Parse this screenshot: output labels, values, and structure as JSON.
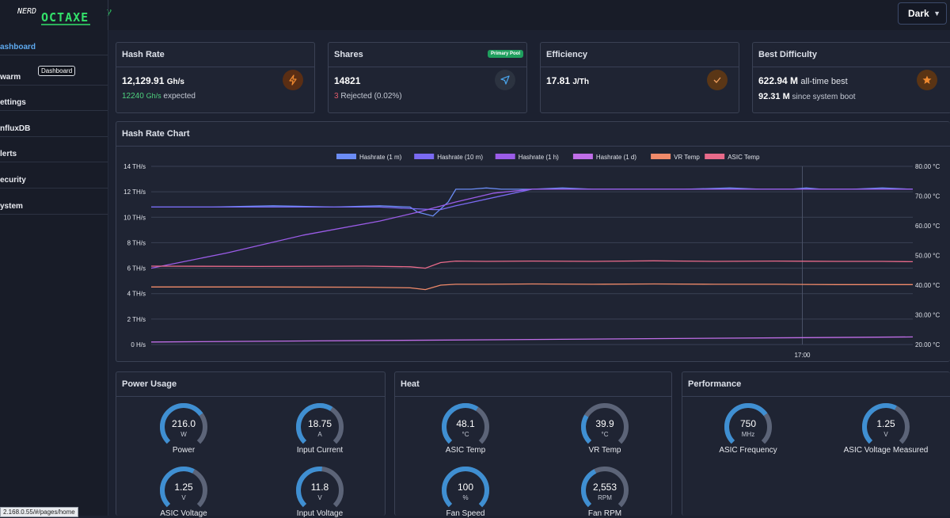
{
  "app": {
    "logo_text": "NERD OCTAXE γ"
  },
  "theme": {
    "selected": "Dark"
  },
  "sidebar": {
    "items": [
      {
        "label": "ashboard",
        "active": true
      },
      {
        "label": "warm",
        "active": false
      },
      {
        "label": "ettings",
        "active": false
      },
      {
        "label": "nfluxDB",
        "active": false
      },
      {
        "label": "lerts",
        "active": false
      },
      {
        "label": "ecurity",
        "active": false
      },
      {
        "label": "ystem",
        "active": false
      }
    ],
    "tooltip": "Dashboard"
  },
  "cards": {
    "hashrate": {
      "title": "Hash Rate",
      "value": "12,129.91",
      "unit": "Gh/s",
      "expected_value": "12240",
      "expected_unit": "Gh/s",
      "expected_text": "expected"
    },
    "shares": {
      "title": "Shares",
      "badge": "Primary Pool",
      "value": "14821",
      "rejected_count": "3",
      "rejected_text": "Rejected",
      "rejected_pct": "(0.02%)"
    },
    "efficiency": {
      "title": "Efficiency",
      "value": "17.81",
      "unit": "J/Th"
    },
    "best": {
      "title": "Best Difficulty",
      "value": "622.94 M",
      "value_suffix": "all-time best",
      "since_boot": "92.31 M",
      "since_boot_suffix": "since system boot"
    }
  },
  "colors": {
    "bg": "#1c2130",
    "card": "#1f2433",
    "accent_blue": "#5eaaf0",
    "green": "#4fd37f",
    "red": "#e05a6a",
    "icon_orange": "#e8772a",
    "gauge_fill": "#3f8fd2",
    "gauge_track": "#5c6478"
  },
  "chart_data": {
    "type": "line",
    "title": "Hash Rate Chart",
    "legend": [
      "Hashrate (1 m)",
      "Hashrate (10 m)",
      "Hashrate (1 h)",
      "Hashrate (1 d)",
      "VR Temp",
      "ASIC Temp"
    ],
    "legend_colors": [
      "#6b8cf5",
      "#7a6af2",
      "#9b5ce8",
      "#c06ee8",
      "#f08a6a",
      "#e86a8a"
    ],
    "y_left": {
      "ticks": [
        "14 TH/s",
        "12 TH/s",
        "10 TH/s",
        "8 TH/s",
        "6 TH/s",
        "4 TH/s",
        "2 TH/s",
        "0 H/s"
      ],
      "range": [
        0,
        14
      ]
    },
    "y_right": {
      "ticks": [
        "80.00 °C",
        "70.00 °C",
        "60.00 °C",
        "50.00 °C",
        "40.00 °C",
        "30.00 °C",
        "20.00 °C"
      ],
      "range": [
        20,
        80
      ]
    },
    "x_ticks": [
      "17:00"
    ],
    "x_range": [
      0,
      100
    ],
    "x_tick_positions": [
      85.5
    ],
    "series": [
      {
        "name": "Hashrate (1 m)",
        "axis": "left",
        "color": "#6b8cf5",
        "x": [
          0,
          8,
          16,
          24,
          30,
          34,
          35,
          37,
          39,
          40,
          41,
          42,
          44,
          46,
          50,
          54,
          58,
          64,
          70,
          76,
          80,
          84,
          86,
          88,
          92,
          96,
          100
        ],
        "y": [
          10.8,
          10.8,
          10.9,
          10.8,
          10.9,
          10.8,
          10.4,
          10.1,
          11.2,
          12.2,
          12.2,
          12.2,
          12.3,
          12.2,
          12.2,
          12.3,
          12.2,
          12.2,
          12.2,
          12.3,
          12.2,
          12.2,
          12.3,
          12.2,
          12.2,
          12.3,
          12.2
        ]
      },
      {
        "name": "Hashrate (10 m)",
        "axis": "left",
        "color": "#7a6af2",
        "x": [
          0,
          30,
          37,
          38,
          40,
          50,
          60,
          70,
          80,
          90,
          100
        ],
        "y": [
          10.8,
          10.8,
          10.6,
          10.6,
          10.9,
          12.2,
          12.2,
          12.2,
          12.2,
          12.2,
          12.2
        ]
      },
      {
        "name": "Hashrate (1 h)",
        "axis": "left",
        "color": "#9b5ce8",
        "x": [
          0,
          10,
          20,
          30,
          35,
          40,
          45,
          50,
          100
        ],
        "y": [
          6.0,
          7.2,
          8.6,
          9.7,
          10.4,
          11.2,
          11.9,
          12.2,
          12.2
        ]
      },
      {
        "name": "Hashrate (1 d)",
        "axis": "left",
        "color": "#c06ee8",
        "x": [
          0,
          100
        ],
        "y": [
          0.2,
          0.6
        ]
      },
      {
        "name": "ASIC Temp",
        "axis": "right",
        "color": "#e86a8a",
        "x": [
          0,
          14,
          28,
          34,
          36,
          38,
          40,
          44,
          50,
          58,
          66,
          74,
          82,
          90,
          96,
          100
        ],
        "y": [
          46.4,
          46.3,
          46.4,
          46.2,
          45.7,
          47.6,
          48.1,
          48.0,
          48.1,
          48.0,
          48.2,
          48.0,
          48.1,
          48.0,
          48.0,
          47.9
        ]
      },
      {
        "name": "VR Temp",
        "axis": "right",
        "color": "#f08a6a",
        "x": [
          0,
          14,
          28,
          34,
          36,
          38,
          40,
          44,
          50,
          58,
          66,
          74,
          82,
          90,
          96,
          100
        ],
        "y": [
          39.4,
          39.4,
          39.3,
          39.1,
          38.5,
          40.0,
          40.3,
          40.3,
          40.4,
          40.3,
          40.4,
          40.3,
          40.3,
          40.2,
          40.2,
          40.2
        ]
      }
    ]
  },
  "panels": {
    "power": {
      "title": "Power Usage",
      "gauges": [
        {
          "value": "216.0",
          "unit": "W",
          "label": "Power",
          "fraction": 0.7
        },
        {
          "value": "18.75",
          "unit": "A",
          "label": "Input Current",
          "fraction": 0.62
        },
        {
          "value": "1.25",
          "unit": "V",
          "label": "ASIC Voltage",
          "fraction": 0.6
        },
        {
          "value": "11.8",
          "unit": "V",
          "label": "Input Voltage",
          "fraction": 0.52
        }
      ]
    },
    "heat": {
      "title": "Heat",
      "gauges": [
        {
          "value": "48.1",
          "unit": "°C",
          "label": "ASIC Temp",
          "fraction": 0.62
        },
        {
          "value": "39.9",
          "unit": "°C",
          "label": "VR Temp",
          "fraction": 0.28
        },
        {
          "value": "100",
          "unit": "%",
          "label": "Fan Speed",
          "fraction": 1.0
        },
        {
          "value": "2,553",
          "unit": "RPM",
          "label": "Fan RPM",
          "fraction": 0.4
        }
      ]
    },
    "performance": {
      "title": "Performance",
      "gauges": [
        {
          "value": "750",
          "unit": "MHz",
          "label": "ASIC Frequency",
          "fraction": 0.7
        },
        {
          "value": "1.25",
          "unit": "V",
          "label": "ASIC Voltage Measured",
          "fraction": 0.6
        }
      ]
    }
  },
  "status_url": "2.168.0.55/#/pages/home"
}
